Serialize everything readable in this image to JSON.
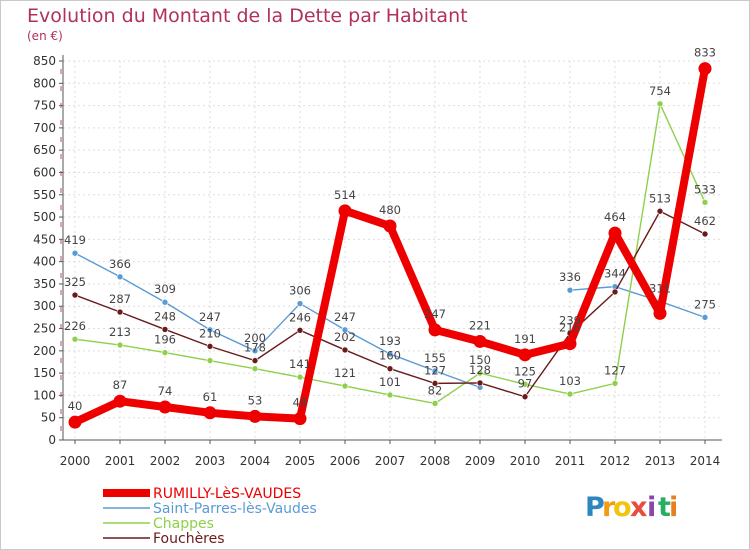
{
  "chart_data": {
    "type": "line",
    "title": "Evolution du Montant de la Dette par Habitant",
    "unit_label": "(en €)",
    "x": [
      "2000",
      "2001",
      "2002",
      "2003",
      "2004",
      "2005",
      "2006",
      "2007",
      "2008",
      "2009",
      "2010",
      "2011",
      "2012",
      "2013",
      "2014"
    ],
    "ylim": [
      0,
      850
    ],
    "yticks": [
      0,
      50,
      100,
      150,
      200,
      250,
      300,
      350,
      400,
      450,
      500,
      550,
      600,
      650,
      700,
      750,
      800,
      850
    ],
    "grid": true,
    "legend_position": "bottom-left",
    "series": [
      {
        "name": "Saint-Parres-lès-Vaudes",
        "color": "#5b9bd5",
        "values": [
          419,
          366,
          309,
          247,
          200,
          306,
          247,
          193,
          155,
          118,
          null,
          336,
          344,
          311,
          275
        ],
        "labels": [
          "419",
          "366",
          "309",
          "247",
          "200",
          "306",
          "247",
          "193",
          "155",
          "",
          "",
          "336",
          "344",
          "311",
          "275"
        ]
      },
      {
        "name": "Chappes",
        "color": "#8ed04a",
        "values": [
          226,
          213,
          196,
          178,
          160,
          141,
          121,
          101,
          82,
          150,
          125,
          103,
          127,
          754,
          533
        ],
        "labels": [
          "226",
          "213",
          "196",
          "",
          "",
          "141",
          "121",
          "101",
          "82",
          "150",
          "125",
          "103",
          "127",
          "754",
          "533"
        ]
      },
      {
        "name": "Fouchères",
        "color": "#6b1a1a",
        "values": [
          325,
          287,
          248,
          210,
          178,
          246,
          202,
          160,
          127,
          128,
          97,
          239,
          332,
          513,
          462
        ],
        "labels": [
          "325",
          "287",
          "248",
          "210",
          "178",
          "246",
          "202",
          "160",
          "127",
          "128",
          "97",
          "239",
          "",
          "513",
          "462"
        ]
      },
      {
        "name": "RUMILLY-LèS-VAUDES",
        "color": "#ee0000",
        "values": [
          40,
          87,
          74,
          61,
          53,
          48,
          514,
          480,
          247,
          221,
          191,
          216,
          464,
          284,
          833
        ],
        "labels": [
          "40",
          "87",
          "74",
          "61",
          "53",
          "48",
          "514",
          "480",
          "247",
          "221",
          "191",
          "216",
          "464",
          "",
          "833"
        ]
      }
    ],
    "legend_order": [
      "RUMILLY-LèS-VAUDES",
      "Saint-Parres-lès-Vaudes",
      "Chappes",
      "Fouchères"
    ]
  },
  "logo": {
    "letters": [
      "P",
      "r",
      "o",
      "x",
      "i",
      "t",
      "i"
    ],
    "colors": [
      "#2e86c1",
      "#f39c12",
      "#f1c40f",
      "#e74c3c",
      "#8e44ad",
      "#27ae60",
      "#e67e22"
    ]
  }
}
